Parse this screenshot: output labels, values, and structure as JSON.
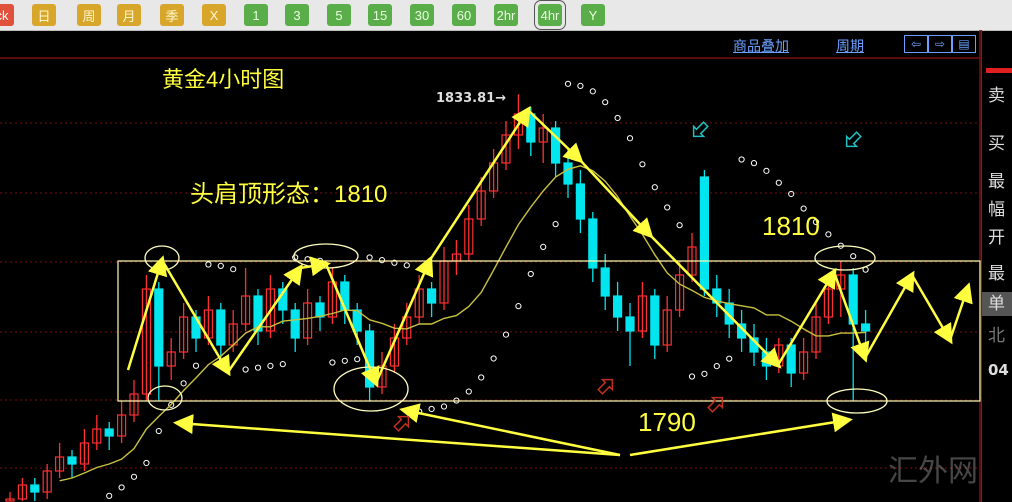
{
  "toolbar": {
    "buttons": [
      {
        "label": "ck",
        "color": "red"
      },
      {
        "label": "日",
        "color": "gold"
      },
      {
        "label": "周",
        "color": "gold"
      },
      {
        "label": "月",
        "color": "gold"
      },
      {
        "label": "季",
        "color": "gold"
      },
      {
        "label": "X",
        "color": "gold"
      },
      {
        "label": "1",
        "color": "green"
      },
      {
        "label": "3",
        "color": "green"
      },
      {
        "label": "5",
        "color": "green"
      },
      {
        "label": "15",
        "color": "green"
      },
      {
        "label": "30",
        "color": "green"
      },
      {
        "label": "60",
        "color": "green"
      },
      {
        "label": "2hr",
        "color": "green"
      },
      {
        "label": "4hr",
        "color": "green",
        "selected": true
      },
      {
        "label": "Y",
        "color": "green"
      }
    ]
  },
  "header": {
    "overlay_link": "商品叠加",
    "period_link": "周期",
    "nav": [
      "⇦",
      "⇨",
      "▤"
    ]
  },
  "right_panel": {
    "labels": [
      "卖",
      "买",
      "最",
      "幅",
      "开",
      "最",
      "单",
      "北",
      "04"
    ]
  },
  "watermark": "汇外网",
  "chart_data": {
    "type": "candlestick",
    "title": "黄金4小时图",
    "annotations": {
      "pattern": "头肩顶形态：1810",
      "resistance": "1810",
      "support": "1790",
      "high_label": "1833.81→"
    },
    "resistance_level": 1810,
    "support_level": 1790,
    "high": 1833.81,
    "ylim": [
      1775.6,
      1841.6
    ],
    "colors": {
      "up": "#ff3030",
      "down": "#00e5ee",
      "ma": "#c8c040",
      "sar": "#ffffff",
      "annotation": "#ffff40",
      "grid": "#7a1010"
    },
    "candles": [
      [
        1774,
        1777,
        1773,
        1776
      ],
      [
        1776,
        1779,
        1775,
        1778
      ],
      [
        1778,
        1779,
        1775,
        1777
      ],
      [
        1777,
        1781,
        1776,
        1780
      ],
      [
        1780,
        1784,
        1779,
        1782
      ],
      [
        1782,
        1783,
        1779,
        1781
      ],
      [
        1781,
        1786,
        1780,
        1784
      ],
      [
        1784,
        1788,
        1783,
        1786
      ],
      [
        1786,
        1787,
        1783,
        1785
      ],
      [
        1785,
        1790,
        1784,
        1788
      ],
      [
        1788,
        1793,
        1787,
        1791
      ],
      [
        1791,
        1808,
        1790,
        1806
      ],
      [
        1806,
        1807,
        1790,
        1795
      ],
      [
        1795,
        1799,
        1793,
        1797
      ],
      [
        1797,
        1804,
        1796,
        1802
      ],
      [
        1802,
        1803,
        1797,
        1799
      ],
      [
        1799,
        1805,
        1798,
        1803
      ],
      [
        1803,
        1804,
        1796,
        1798
      ],
      [
        1798,
        1803,
        1797,
        1801
      ],
      [
        1801,
        1809,
        1800,
        1805
      ],
      [
        1805,
        1806,
        1798,
        1800
      ],
      [
        1800,
        1808,
        1799,
        1806
      ],
      [
        1806,
        1807,
        1801,
        1803
      ],
      [
        1803,
        1804,
        1797,
        1799
      ],
      [
        1799,
        1806,
        1798,
        1804
      ],
      [
        1804,
        1805,
        1800,
        1802
      ],
      [
        1802,
        1809,
        1801,
        1807
      ],
      [
        1807,
        1808,
        1801,
        1803
      ],
      [
        1803,
        1804,
        1798,
        1800
      ],
      [
        1800,
        1801,
        1790,
        1792
      ],
      [
        1792,
        1797,
        1791,
        1795
      ],
      [
        1795,
        1801,
        1794,
        1799
      ],
      [
        1799,
        1804,
        1798,
        1802
      ],
      [
        1802,
        1808,
        1801,
        1806
      ],
      [
        1806,
        1807,
        1802,
        1804
      ],
      [
        1804,
        1812,
        1803,
        1810
      ],
      [
        1810,
        1813,
        1808,
        1811
      ],
      [
        1811,
        1818,
        1810,
        1816
      ],
      [
        1816,
        1822,
        1815,
        1820
      ],
      [
        1820,
        1826,
        1819,
        1824
      ],
      [
        1824,
        1830,
        1823,
        1828
      ],
      [
        1828,
        1833.81,
        1826,
        1831
      ],
      [
        1831,
        1832,
        1825,
        1827
      ],
      [
        1827,
        1831,
        1824,
        1829
      ],
      [
        1829,
        1830,
        1822,
        1824
      ],
      [
        1824,
        1826,
        1819,
        1821
      ],
      [
        1821,
        1823,
        1814,
        1816
      ],
      [
        1816,
        1817,
        1807,
        1809
      ],
      [
        1809,
        1811,
        1803,
        1805
      ],
      [
        1805,
        1807,
        1800,
        1802
      ],
      [
        1802,
        1804,
        1795,
        1800
      ],
      [
        1800,
        1807,
        1799,
        1805
      ],
      [
        1805,
        1806,
        1796,
        1798
      ],
      [
        1798,
        1805,
        1797,
        1803
      ],
      [
        1803,
        1810,
        1802,
        1808
      ],
      [
        1808,
        1814,
        1807,
        1812
      ],
      [
        1822,
        1823,
        1805,
        1806
      ],
      [
        1806,
        1808,
        1802,
        1804
      ],
      [
        1804,
        1806,
        1799,
        1801
      ],
      [
        1801,
        1803,
        1797,
        1799
      ],
      [
        1799,
        1801,
        1795,
        1797
      ],
      [
        1797,
        1799,
        1793,
        1795
      ],
      [
        1795,
        1799,
        1794,
        1798
      ],
      [
        1798,
        1799,
        1792,
        1794
      ],
      [
        1794,
        1799,
        1793,
        1797
      ],
      [
        1797,
        1804,
        1796,
        1802
      ],
      [
        1802,
        1808,
        1801,
        1806
      ],
      [
        1806,
        1810,
        1802,
        1808
      ],
      [
        1808,
        1809,
        1790,
        1801
      ],
      [
        1801,
        1803,
        1797,
        1800
      ]
    ]
  }
}
